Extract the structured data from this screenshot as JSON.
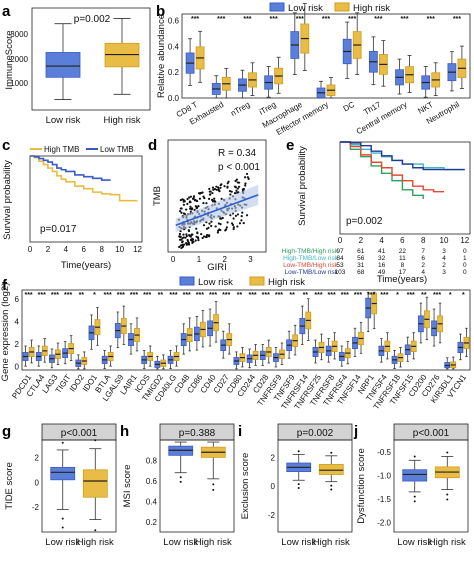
{
  "colors": {
    "low": "#5b7fd8",
    "high": "#e8bc45",
    "low_line": "#3a5bc7",
    "high_line": "#cf9e20",
    "strip": "#d3d3d3",
    "trend": "#2f5fd0",
    "km_htmb_hr": "#2ca25f",
    "km_htmb_lr": "#41b6c4",
    "km_ltmb_hr": "#e34a33",
    "km_ltmb_lr": "#1f3a93"
  },
  "legend": {
    "low": "Low risk",
    "high": "High risk"
  },
  "panels": {
    "a": {
      "letter": "a",
      "ylabel": "ImmuneScore",
      "pvalue": "p=0.002",
      "yticks": [
        "1000",
        "2000",
        "3000"
      ],
      "groups": [
        "Low risk",
        "High risk"
      ]
    },
    "b": {
      "letter": "b",
      "ylabel": "Relative abundance",
      "yticks": [
        "0.0",
        "0.2",
        "0.4",
        "0.6"
      ],
      "cells": [
        "CD8 T",
        "Exhausted",
        "nTreg",
        "iTreg",
        "Macrophage",
        "Effector memory",
        "DC",
        "Th17",
        "Central memory",
        "NKT",
        "Neutrophil"
      ],
      "sig": [
        "***",
        "***",
        "***",
        "***",
        "***",
        "***",
        "***",
        "***",
        "***",
        "***",
        "***"
      ]
    },
    "c": {
      "letter": "c",
      "legend_high": "High TMB",
      "legend_low": "Low TMB",
      "ylabel": "Survival probability",
      "xlabel": "Time(years)",
      "pvalue": "p=0.017",
      "xticks": [
        "0",
        "2",
        "4",
        "6",
        "8",
        "10",
        "12"
      ],
      "yticks": [
        "0.00",
        "0.25",
        "0.50",
        "0.75",
        "1.00"
      ]
    },
    "d": {
      "letter": "d",
      "ylabel": "TMB",
      "xlabel": "GIRI",
      "r_label": "R = 0.34",
      "p_label": "p < 0.001",
      "xticks": [
        "0",
        "1",
        "2",
        "3"
      ]
    },
    "e": {
      "letter": "e",
      "ylabel": "Survival probability",
      "xlabel": "Time(years)",
      "pvalue": "p=0.002",
      "xticks": [
        "0",
        "2",
        "4",
        "6",
        "8",
        "10",
        "12"
      ],
      "yticks": [
        "0.00",
        "0.25",
        "0.50",
        "0.75",
        "1.00"
      ],
      "risk_table": [
        {
          "label": "High-TMB/High risk",
          "n": [
            "97",
            "61",
            "41",
            "22",
            "7",
            "3",
            "0"
          ]
        },
        {
          "label": "High-TMB/Low risk",
          "n": [
            "84",
            "56",
            "32",
            "11",
            "6",
            "4",
            "1"
          ]
        },
        {
          "label": "Low-TMB/High risk",
          "n": [
            "53",
            "31",
            "16",
            "8",
            "2",
            "2",
            "0"
          ]
        },
        {
          "label": "Low-TMB/Low risk",
          "n": [
            "103",
            "68",
            "49",
            "17",
            "4",
            "3",
            "0"
          ]
        }
      ]
    },
    "f": {
      "letter": "f",
      "ylabel": "Gene expression (log2)",
      "yticks": [
        "0",
        "2",
        "4",
        "6"
      ],
      "genes": [
        "PDCD1",
        "CTLA4",
        "LAG3",
        "TIGIT",
        "IDO2",
        "IDO1",
        "BTLA",
        "LGALS9",
        "LAIR1",
        "ICOS",
        "TMIGD2",
        "CD40LG",
        "CD48",
        "CD86",
        "CD40",
        "CD27",
        "CD80",
        "CD244",
        "CD28",
        "TNFRSF9",
        "TNFSF9",
        "TNFRSF14",
        "TNFRSF25",
        "TNFRSF8",
        "TNFRSF4",
        "TNFSF14",
        "NRP1",
        "TNFSF4",
        "TNFRSF18",
        "TNFSF15",
        "CD200",
        "CD276",
        "KIR3DL1",
        "VTCN1"
      ],
      "sig": [
        "***",
        "***",
        "***",
        "***",
        "**",
        "*",
        "***",
        "***",
        "***",
        "***",
        "**",
        "***",
        "***",
        "***",
        "***",
        "***",
        "**",
        "***",
        "***",
        "***",
        "**",
        "**",
        "***",
        "***",
        "***",
        "***",
        "***",
        "***",
        "*",
        "***",
        "**",
        "***",
        "*",
        "*"
      ]
    },
    "g": {
      "letter": "g",
      "pvalue": "p<0.001",
      "ylabel": "TIDE score",
      "yticks": [
        "-2",
        "0",
        "2"
      ],
      "groups": [
        "Low risk",
        "High risk"
      ]
    },
    "h": {
      "letter": "h",
      "pvalue": "p=0.388",
      "ylabel": "MSI score",
      "yticks": [
        "0.2",
        "0.4",
        "0.6",
        "0.8"
      ],
      "groups": [
        "Low risk",
        "High risk"
      ]
    },
    "i": {
      "letter": "i",
      "pvalue": "p=0.002",
      "ylabel": "Exclusion score",
      "yticks": [
        "-2",
        "0",
        "2"
      ],
      "groups": [
        "Low risk",
        "High risk"
      ]
    },
    "j": {
      "letter": "j",
      "pvalue": "p<0.001",
      "ylabel": "Dysfunction score",
      "yticks": [
        "-2.0",
        "-1.5",
        "-1.0",
        "-0.5"
      ],
      "groups": [
        "Low risk",
        "High risk"
      ]
    }
  },
  "chart_data": [
    {
      "panel": "a",
      "type": "box",
      "categories": [
        "Low risk",
        "High risk"
      ],
      "ylim": [
        -200,
        3700
      ],
      "series": [
        {
          "name": "Low risk",
          "min": 200,
          "q1": 1050,
          "median": 1480,
          "q3": 2000,
          "max": 3100
        },
        {
          "name": "High risk",
          "min": 400,
          "q1": 1450,
          "median": 1920,
          "q3": 2350,
          "max": 3300
        }
      ]
    },
    {
      "panel": "b",
      "type": "box",
      "categories": [
        "CD8 T",
        "Exhausted",
        "nTreg",
        "iTreg",
        "Macrophage",
        "Effector memory",
        "DC",
        "Th17",
        "Central memory",
        "NKT",
        "Neutrophil"
      ],
      "ylim": [
        0,
        0.65
      ],
      "series": [
        {
          "name": "Low risk",
          "median": [
            0.27,
            0.07,
            0.1,
            0.12,
            0.41,
            0.04,
            0.36,
            0.28,
            0.16,
            0.12,
            0.2
          ]
        },
        {
          "name": "High risk",
          "median": [
            0.31,
            0.11,
            0.14,
            0.17,
            0.46,
            0.06,
            0.41,
            0.26,
            0.18,
            0.14,
            0.23
          ]
        }
      ]
    },
    {
      "panel": "c",
      "type": "line",
      "xlabel": "Time(years)",
      "ylabel": "Survival probability",
      "xlim": [
        0,
        12.5
      ],
      "ylim": [
        0,
        1
      ],
      "series": [
        {
          "name": "High TMB",
          "x": [
            0,
            0.5,
            1,
            1.5,
            2,
            2.5,
            3,
            3.5,
            4,
            5,
            6,
            7,
            8,
            9,
            10,
            12
          ],
          "y": [
            1,
            0.98,
            0.94,
            0.9,
            0.86,
            0.82,
            0.77,
            0.73,
            0.7,
            0.65,
            0.62,
            0.58,
            0.56,
            0.55,
            0.48,
            0.48
          ]
        },
        {
          "name": "Low TMB",
          "x": [
            0,
            0.5,
            1,
            1.5,
            2,
            2.5,
            3,
            3.5,
            4,
            5,
            6,
            7,
            8,
            9
          ],
          "y": [
            1,
            0.99,
            0.97,
            0.95,
            0.93,
            0.9,
            0.86,
            0.84,
            0.82,
            0.78,
            0.76,
            0.74,
            0.72,
            0.72
          ]
        }
      ]
    },
    {
      "panel": "d",
      "type": "scatter",
      "xlabel": "GIRI",
      "ylabel": "TMB",
      "xlim": [
        -0.2,
        3.6
      ],
      "ylim": [
        0,
        1
      ],
      "fit": {
        "intercept": 0.23,
        "slope": 0.085
      }
    },
    {
      "panel": "e",
      "type": "line",
      "xlabel": "Time(years)",
      "ylabel": "Survival probability",
      "xlim": [
        0,
        12.5
      ],
      "ylim": [
        0,
        1
      ],
      "series": [
        {
          "name": "High-TMB/High risk",
          "x": [
            0,
            1,
            2,
            3,
            4,
            5,
            6,
            7,
            8
          ],
          "y": [
            1,
            0.92,
            0.84,
            0.74,
            0.66,
            0.58,
            0.48,
            0.42,
            0.38
          ]
        },
        {
          "name": "High-TMB/Low risk",
          "x": [
            0,
            1,
            2,
            3,
            4,
            5,
            6,
            8,
            10,
            12
          ],
          "y": [
            1,
            0.97,
            0.92,
            0.88,
            0.84,
            0.8,
            0.76,
            0.72,
            0.7,
            0.7
          ]
        },
        {
          "name": "Low-TMB/High risk",
          "x": [
            0,
            1,
            2,
            3,
            4,
            5,
            6,
            7,
            8,
            9,
            10
          ],
          "y": [
            1,
            0.95,
            0.86,
            0.78,
            0.72,
            0.64,
            0.58,
            0.52,
            0.48,
            0.46,
            0.46
          ]
        },
        {
          "name": "Low-TMB/Low risk",
          "x": [
            0,
            1,
            2,
            3,
            4,
            5,
            6,
            7,
            8,
            10,
            12
          ],
          "y": [
            1,
            0.99,
            0.96,
            0.9,
            0.85,
            0.8,
            0.76,
            0.72,
            0.7,
            0.7,
            0.7
          ]
        }
      ]
    },
    {
      "panel": "f",
      "type": "box",
      "categories": [
        "PDCD1",
        "CTLA4",
        "LAG3",
        "TIGIT",
        "IDO2",
        "IDO1",
        "BTLA",
        "LGALS9",
        "LAIR1",
        "ICOS",
        "TMIGD2",
        "CD40LG",
        "CD48",
        "CD86",
        "CD40",
        "CD27",
        "CD80",
        "CD244",
        "CD28",
        "TNFRSF9",
        "TNFSF9",
        "TNFRSF14",
        "TNFRSF25",
        "TNFRSF8",
        "TNFRSF4",
        "TNFSF14",
        "NRP1",
        "TNFSF4",
        "TNFRSF18",
        "TNFSF15",
        "CD200",
        "CD276",
        "KIR3DL1",
        "VTCN1"
      ],
      "ylim": [
        -0.3,
        6.8
      ],
      "series": [
        {
          "name": "Low risk",
          "median": [
            0.9,
            0.9,
            0.7,
            1.2,
            0.3,
            3.0,
            0.6,
            3.2,
            2.4,
            0.6,
            0.2,
            0.6,
            2.4,
            2.9,
            3.4,
            1.9,
            0.5,
            0.7,
            1.0,
            0.8,
            1.9,
            3.6,
            1.3,
            1.4,
            0.9,
            2.1,
            5.2,
            1.4,
            0.6,
            1.5,
            3.8,
            3.4,
            0.1,
            1.7
          ]
        },
        {
          "name": "High risk",
          "median": [
            1.3,
            1.4,
            1.1,
            1.6,
            0.5,
            3.5,
            0.9,
            3.6,
            2.8,
            0.9,
            0.3,
            0.9,
            2.8,
            3.3,
            3.9,
            2.4,
            0.8,
            1.0,
            1.3,
            1.1,
            2.3,
            4.1,
            1.7,
            1.8,
            1.2,
            2.5,
            5.6,
            1.8,
            0.8,
            1.8,
            4.2,
            3.8,
            0.15,
            2.1
          ]
        }
      ]
    },
    {
      "panel": "g",
      "type": "box",
      "categories": [
        "Low risk",
        "High risk"
      ],
      "ylim": [
        -4,
        3.4
      ],
      "series": [
        {
          "name": "Low risk",
          "min": -2.2,
          "q1": 0.2,
          "median": 0.8,
          "q3": 1.2,
          "max": 2.6
        },
        {
          "name": "High risk",
          "min": -3.0,
          "q1": -1.2,
          "median": 0.1,
          "q3": 1.0,
          "max": 2.7
        }
      ]
    },
    {
      "panel": "h",
      "type": "box",
      "categories": [
        "Low risk",
        "High risk"
      ],
      "ylim": [
        0.1,
        1.0
      ],
      "series": [
        {
          "name": "Low risk",
          "min": 0.68,
          "q1": 0.85,
          "median": 0.9,
          "q3": 0.94,
          "max": 0.98
        },
        {
          "name": "High risk",
          "min": 0.62,
          "q1": 0.83,
          "median": 0.88,
          "q3": 0.93,
          "max": 0.98
        }
      ]
    },
    {
      "panel": "i",
      "type": "box",
      "categories": [
        "Low risk",
        "High risk"
      ],
      "ylim": [
        -3.2,
        3.2
      ],
      "series": [
        {
          "name": "Low risk",
          "min": 0.4,
          "q1": 1.0,
          "median": 1.3,
          "q3": 1.6,
          "max": 2.2
        },
        {
          "name": "High risk",
          "min": 0.3,
          "q1": 0.8,
          "median": 1.1,
          "q3": 1.5,
          "max": 2.1
        }
      ]
    },
    {
      "panel": "j",
      "type": "box",
      "categories": [
        "Low risk",
        "High risk"
      ],
      "ylim": [
        -2.2,
        -0.25
      ],
      "series": [
        {
          "name": "Low risk",
          "min": -1.35,
          "q1": -1.12,
          "median": -0.98,
          "q3": -0.88,
          "max": -0.68
        },
        {
          "name": "High risk",
          "min": -1.3,
          "q1": -1.05,
          "median": -0.93,
          "q3": -0.82,
          "max": -0.6
        }
      ]
    }
  ]
}
